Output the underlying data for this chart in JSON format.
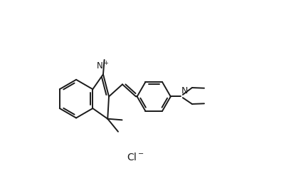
{
  "background_color": "#ffffff",
  "line_color": "#1a1a1a",
  "line_width": 1.4,
  "font_size": 8.5,
  "fig_width": 4.23,
  "fig_height": 2.68,
  "dpi": 100,
  "xlim": [
    0,
    10
  ],
  "ylim": [
    0,
    6.3
  ]
}
